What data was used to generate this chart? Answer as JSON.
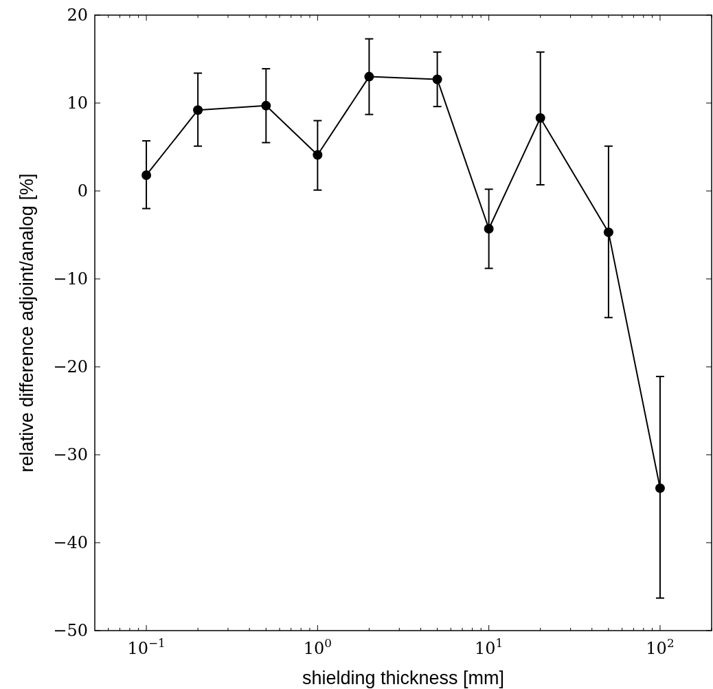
{
  "chart_data": {
    "type": "line",
    "xlabel": "shielding thickness [mm]",
    "ylabel": "relative difference adjoint/analog [%]",
    "x": [
      0.1,
      0.2,
      0.5,
      1,
      2,
      5,
      10,
      20,
      50,
      100
    ],
    "series": [
      {
        "color": "#000000",
        "values": [
          1.8,
          9.2,
          9.7,
          4.1,
          13.0,
          12.7,
          -4.3,
          8.3,
          -4.7,
          -33.8
        ],
        "errors": [
          [
            -2.0,
            5.7
          ],
          [
            5.1,
            13.4
          ],
          [
            5.5,
            13.9
          ],
          [
            0.1,
            8.0
          ],
          [
            8.7,
            17.3
          ],
          [
            9.6,
            15.8
          ],
          [
            -8.8,
            0.2
          ],
          [
            0.7,
            15.8
          ],
          [
            -14.4,
            5.1
          ],
          [
            -46.3,
            -21.1
          ]
        ]
      }
    ],
    "log": "x",
    "xlim": [
      0.05,
      200
    ],
    "ylim": [
      -50,
      20
    ],
    "xticks": [
      {
        "value": 0.06,
        "label": null
      },
      {
        "value": 0.07,
        "label": null
      },
      {
        "value": 0.08,
        "label": null
      },
      {
        "value": 0.09,
        "label": null
      },
      {
        "value": 0.1,
        "label": "10$^{−1}$"
      },
      {
        "value": 0.2,
        "label": null
      },
      {
        "value": 0.3,
        "label": null
      },
      {
        "value": 0.4,
        "label": null
      },
      {
        "value": 0.5,
        "label": null
      },
      {
        "value": 0.6,
        "label": null
      },
      {
        "value": 0.7,
        "label": null
      },
      {
        "value": 0.8,
        "label": null
      },
      {
        "value": 0.9,
        "label": null
      },
      {
        "value": 1,
        "label": "10$^{0}$"
      },
      {
        "value": 2,
        "label": null
      },
      {
        "value": 3,
        "label": null
      },
      {
        "value": 4,
        "label": null
      },
      {
        "value": 5,
        "label": null
      },
      {
        "value": 6,
        "label": null
      },
      {
        "value": 7,
        "label": null
      },
      {
        "value": 8,
        "label": null
      },
      {
        "value": 9,
        "label": null
      },
      {
        "value": 10,
        "label": "10$^{1}$"
      },
      {
        "value": 20,
        "label": null
      },
      {
        "value": 30,
        "label": null
      },
      {
        "value": 40,
        "label": null
      },
      {
        "value": 50,
        "label": null
      },
      {
        "value": 60,
        "label": null
      },
      {
        "value": 70,
        "label": null
      },
      {
        "value": 80,
        "label": null
      },
      {
        "value": 90,
        "label": null
      },
      {
        "value": 100,
        "label": "10$^{2}$"
      },
      {
        "value": 200,
        "label": null
      }
    ],
    "yticks": [
      {
        "value": -50,
        "label": "−50"
      },
      {
        "value": -40,
        "label": "−40"
      },
      {
        "value": -30,
        "label": "−30"
      },
      {
        "value": -20,
        "label": "−20"
      },
      {
        "value": -10,
        "label": "−10"
      },
      0,
      10,
      20
    ],
    "grid": false,
    "marker": "circle",
    "line_style": "solid"
  }
}
